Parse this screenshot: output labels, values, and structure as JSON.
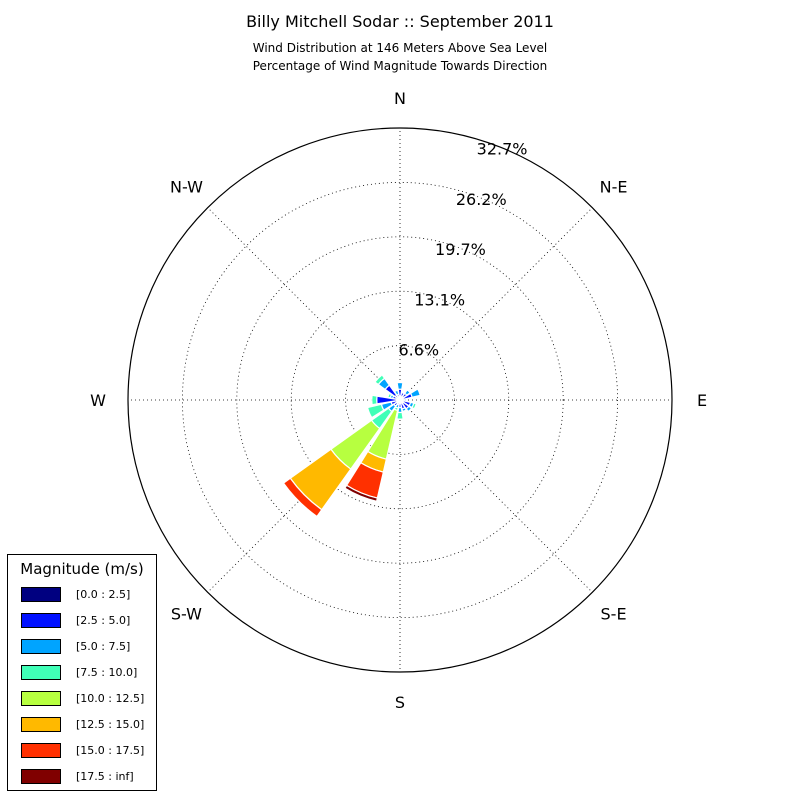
{
  "title": "Billy Mitchell Sodar :: September 2011",
  "subtitle_line1": "Wind Distribution at 146 Meters Above Sea Level",
  "subtitle_line2": "Percentage of Wind Magnitude Towards Direction",
  "chart_data": {
    "type": "windrose",
    "direction_labels": [
      "N",
      "N-E",
      "E",
      "S-E",
      "S",
      "S-W",
      "W",
      "N-W"
    ],
    "radial_ticks": [
      "6.6%",
      "13.1%",
      "19.7%",
      "26.2%",
      "32.7%"
    ],
    "radial_max": 32.7,
    "legend": {
      "title": "Magnitude (m/s)",
      "bins": [
        {
          "label": "[0.0 : 2.5]",
          "color": "#000080"
        },
        {
          "label": "[2.5 : 5.0]",
          "color": "#0010ff"
        },
        {
          "label": "[5.0 : 7.5]",
          "color": "#00a4ff"
        },
        {
          "label": "[7.5 : 10.0]",
          "color": "#40ffb7"
        },
        {
          "label": "[10.0 : 12.5]",
          "color": "#b7ff40"
        },
        {
          "label": "[12.5 : 15.0]",
          "color": "#ffb900"
        },
        {
          "label": "[15.0 : 17.5]",
          "color": "#ff3000"
        },
        {
          "label": "[17.5 : inf]",
          "color": "#800000"
        }
      ]
    },
    "sectors": [
      {
        "direction_deg": 0,
        "values": [
          0.5,
          0.8,
          0.8,
          0,
          0,
          0,
          0,
          0
        ]
      },
      {
        "direction_deg": 22.5,
        "values": [
          0.4,
          0.5,
          0.0,
          0,
          0,
          0,
          0,
          0
        ]
      },
      {
        "direction_deg": 45,
        "values": [
          0.5,
          0.5,
          0.5,
          0,
          0,
          0,
          0,
          0
        ]
      },
      {
        "direction_deg": 67.5,
        "values": [
          0.3,
          1.2,
          1.0,
          0,
          0,
          0,
          0,
          0
        ]
      },
      {
        "direction_deg": 90,
        "values": [
          0.3,
          0.3,
          0.2,
          0,
          0,
          0,
          0,
          0
        ]
      },
      {
        "direction_deg": 112.5,
        "values": [
          0.4,
          0.9,
          0.4,
          0.3,
          0,
          0,
          0,
          0
        ]
      },
      {
        "direction_deg": 135,
        "values": [
          0.5,
          0.8,
          0.4,
          0,
          0,
          0,
          0,
          0
        ]
      },
      {
        "direction_deg": 157.5,
        "values": [
          0.4,
          0.7,
          0.3,
          0,
          0,
          0,
          0,
          0
        ]
      },
      {
        "direction_deg": 180,
        "values": [
          0.4,
          0.5,
          0.6,
          0.8,
          0,
          0,
          0,
          0
        ]
      },
      {
        "direction_deg": 202.5,
        "values": [
          0.2,
          0.4,
          0.4,
          0.3,
          6.0,
          1.6,
          3.2,
          0.4
        ]
      },
      {
        "direction_deg": 225,
        "values": [
          0.3,
          0.6,
          0.8,
          2.5,
          6.0,
          6.0,
          1.0,
          0
        ]
      },
      {
        "direction_deg": 247.5,
        "values": [
          0.4,
          0.7,
          1.2,
          1.7,
          0,
          0,
          0,
          0
        ]
      },
      {
        "direction_deg": 270,
        "values": [
          0.4,
          2.4,
          0.0,
          0.6,
          0,
          0,
          0,
          0
        ]
      },
      {
        "direction_deg": 292.5,
        "values": [
          0.5,
          0.4,
          0.3,
          0.3,
          0,
          0,
          0,
          0
        ]
      },
      {
        "direction_deg": 315,
        "values": [
          0.7,
          1.5,
          1.0,
          0.5,
          0,
          0,
          0,
          0
        ]
      },
      {
        "direction_deg": 337.5,
        "values": [
          0.3,
          0.4,
          0.5,
          0,
          0,
          0,
          0,
          0
        ]
      }
    ]
  }
}
